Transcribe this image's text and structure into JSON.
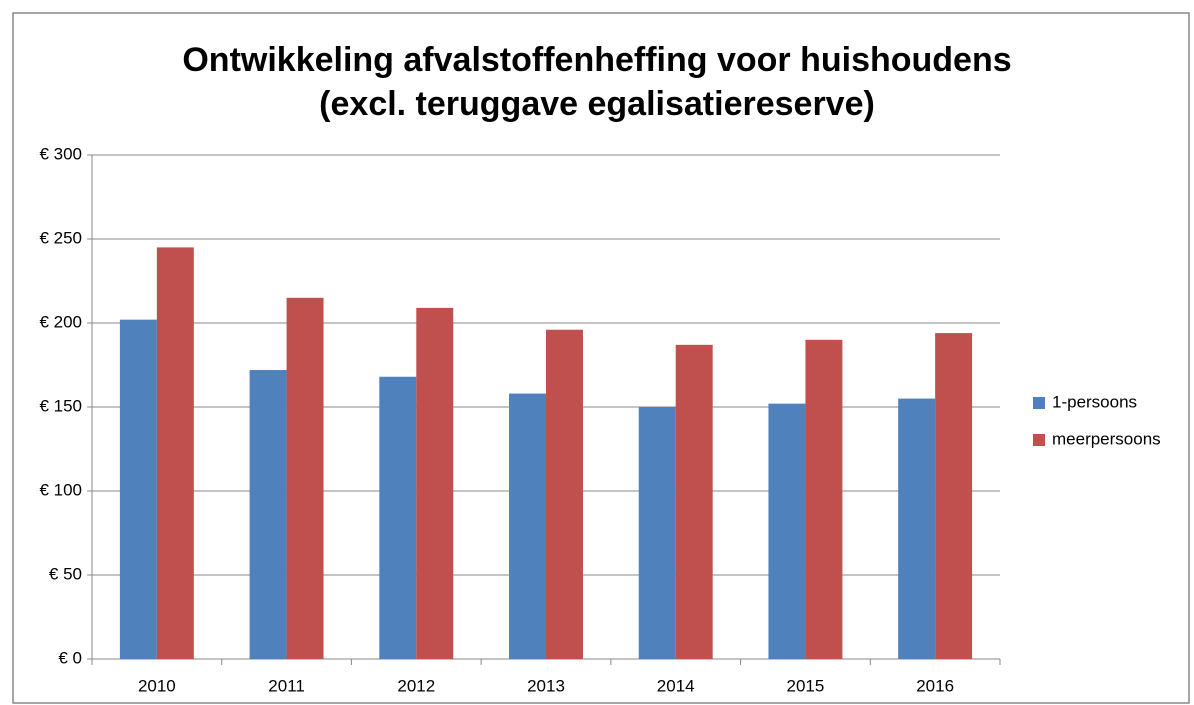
{
  "chart_data": {
    "type": "bar",
    "title": [
      "Ontwikkeling afvalstoffenheffing voor huishoudens",
      "(excl.  teruggave egalisatiereserve)"
    ],
    "categories": [
      "2010",
      "2011",
      "2012",
      "2013",
      "2014",
      "2015",
      "2016"
    ],
    "series": [
      {
        "name": "1-persoons",
        "color": "#4f81bd",
        "values": [
          202,
          172,
          168,
          158,
          150,
          152,
          155
        ]
      },
      {
        "name": "meerpersoons",
        "color": "#c0504d",
        "values": [
          245,
          215,
          209,
          196,
          187,
          190,
          194
        ]
      }
    ],
    "ylim": [
      0,
      300
    ],
    "yticks": [
      {
        "value": 0,
        "label": "€ 0"
      },
      {
        "value": 50,
        "label": "€ 50"
      },
      {
        "value": 100,
        "label": "€ 100"
      },
      {
        "value": 150,
        "label": "€ 150"
      },
      {
        "value": 200,
        "label": "€ 200"
      },
      {
        "value": 250,
        "label": "€ 250"
      },
      {
        "value": 300,
        "label": "€ 300"
      }
    ],
    "grid": true,
    "legend": "right"
  }
}
